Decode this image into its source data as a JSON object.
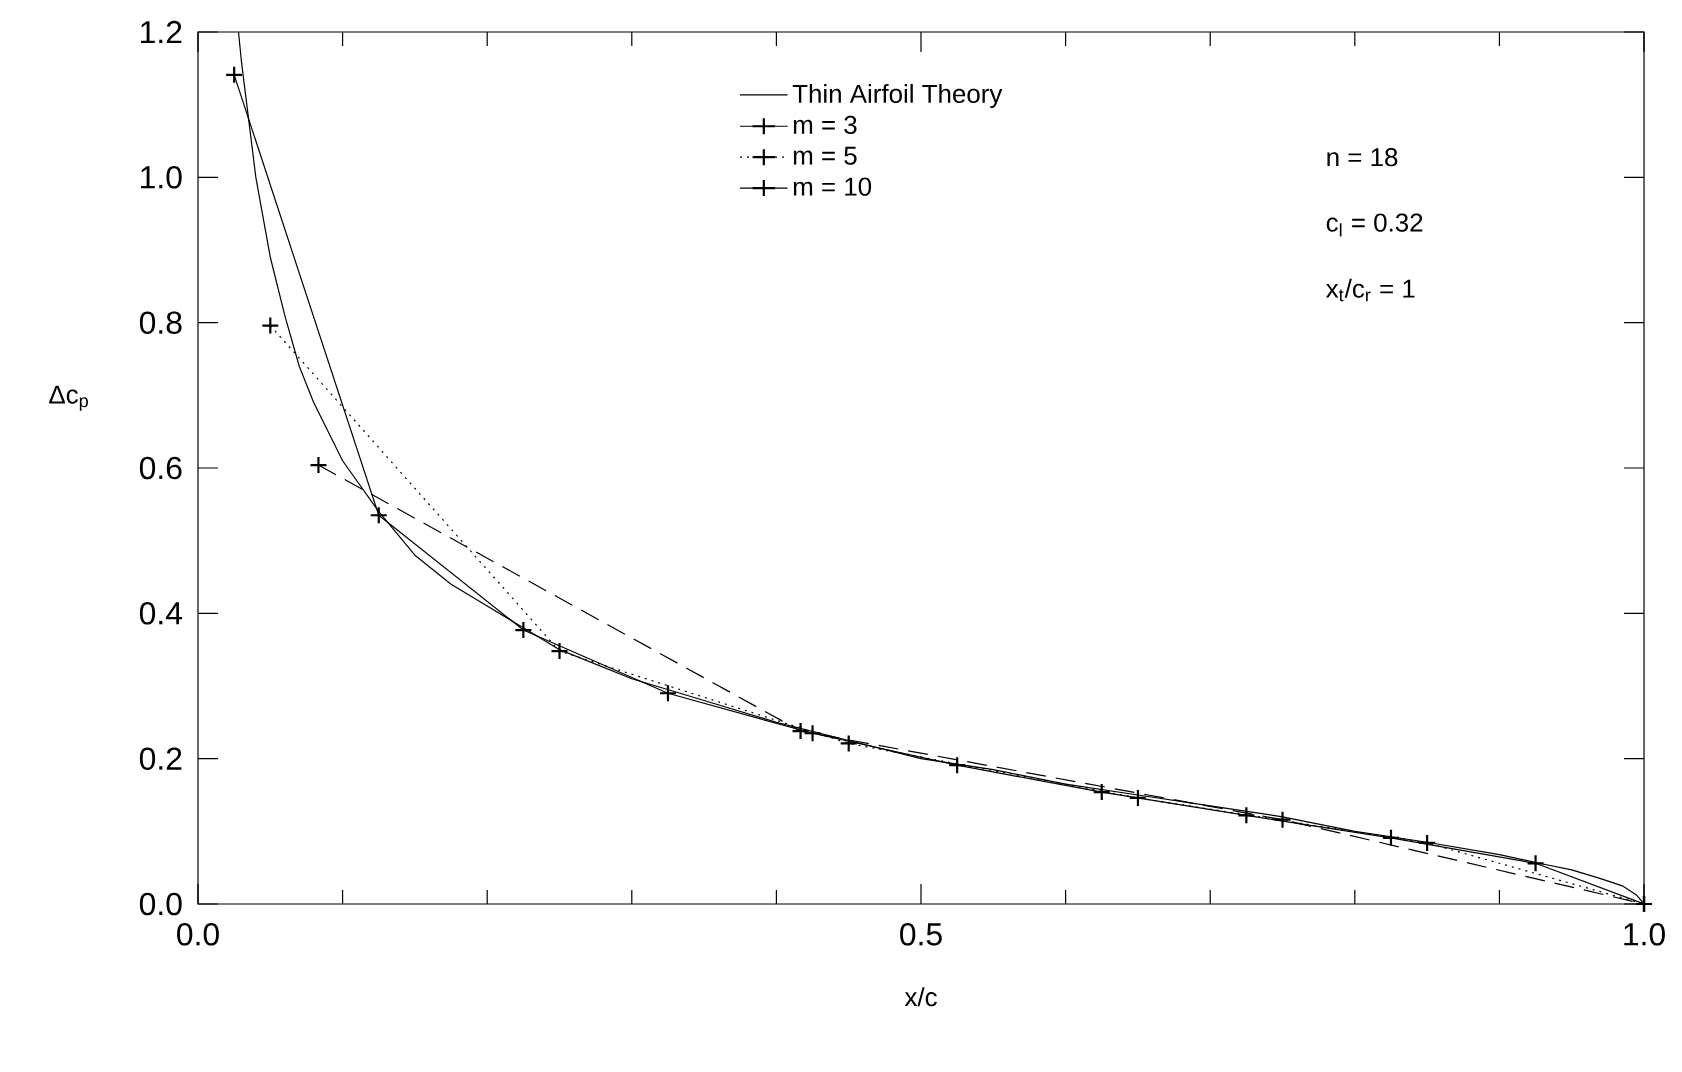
{
  "chart_data": {
    "type": "line",
    "xlabel": "x/c",
    "ylabel": "Δc$_{p}$",
    "xlim": [
      0,
      1
    ],
    "ylim": [
      0,
      1.2
    ],
    "xticks": [
      {
        "value": 0,
        "label": "0.0"
      },
      {
        "value": 0.1,
        "label": null
      },
      {
        "value": 0.2,
        "label": null
      },
      {
        "value": 0.3,
        "label": null
      },
      {
        "value": 0.4,
        "label": null
      },
      {
        "value": 0.5,
        "label": "0.5"
      },
      {
        "value": 0.6,
        "label": null
      },
      {
        "value": 0.7,
        "label": null
      },
      {
        "value": 0.8,
        "label": null
      },
      {
        "value": 0.9,
        "label": null
      },
      {
        "value": 1,
        "label": "1.0"
      }
    ],
    "yticks": [
      {
        "value": 0,
        "label": "0.0"
      },
      {
        "value": 0.2,
        "label": "0.2"
      },
      {
        "value": 0.4,
        "label": "0.4"
      },
      {
        "value": 0.6,
        "label": "0.6"
      },
      {
        "value": 0.8,
        "label": "0.8"
      },
      {
        "value": 1,
        "label": "1.0"
      },
      {
        "value": 1.2,
        "label": "1.2"
      }
    ],
    "legend": "top",
    "grid": false,
    "annotations": [
      "n      = 18",
      "c$_{l}$     = 0.32",
      "x$_{t}$/c$_{r}$ = 1"
    ],
    "series": [
      {
        "name": "Thin Airfoil Theory",
        "color": "#000000",
        "line_style": "solid",
        "marker": "none",
        "x": [
          0.028,
          0.03,
          0.035,
          0.04,
          0.05,
          0.06,
          0.07,
          0.08,
          0.1,
          0.125,
          0.15,
          0.175,
          0.2,
          0.225,
          0.25,
          0.3,
          0.35,
          0.4,
          0.45,
          0.5,
          0.55,
          0.6,
          0.65,
          0.7,
          0.75,
          0.8,
          0.85,
          0.9,
          0.93,
          0.95,
          0.97,
          0.985,
          0.995,
          1.0
        ],
        "values": [
          1.2,
          1.16,
          1.08,
          1.0,
          0.89,
          0.81,
          0.74,
          0.69,
          0.61,
          0.54,
          0.48,
          0.44,
          0.41,
          0.38,
          0.35,
          0.31,
          0.28,
          0.25,
          0.225,
          0.2,
          0.185,
          0.165,
          0.15,
          0.135,
          0.12,
          0.1,
          0.085,
          0.068,
          0.055,
          0.047,
          0.035,
          0.025,
          0.012,
          0
        ]
      },
      {
        "name": "m = 3",
        "color": "#000000",
        "line_style": "dashed",
        "marker": "cross",
        "x": [
          0.0833,
          0.4167,
          0.75,
          1.0
        ],
        "values": [
          0.604,
          0.238,
          0.116,
          0
        ]
      },
      {
        "name": "m = 5",
        "color": "#000000",
        "line_style": "dotted",
        "marker": "cross",
        "x": [
          0.05,
          0.25,
          0.45,
          0.65,
          0.85,
          1.0
        ],
        "values": [
          0.796,
          0.348,
          0.221,
          0.146,
          0.084,
          0
        ]
      },
      {
        "name": "m = 10",
        "color": "#000000",
        "line_style": "solid",
        "marker": "cross",
        "x": [
          0.025,
          0.125,
          0.225,
          0.325,
          0.425,
          0.525,
          0.625,
          0.725,
          0.825,
          0.925,
          1.0
        ],
        "values": [
          1.141,
          0.535,
          0.377,
          0.29,
          0.235,
          0.191,
          0.154,
          0.122,
          0.091,
          0.056,
          0
        ]
      }
    ]
  }
}
